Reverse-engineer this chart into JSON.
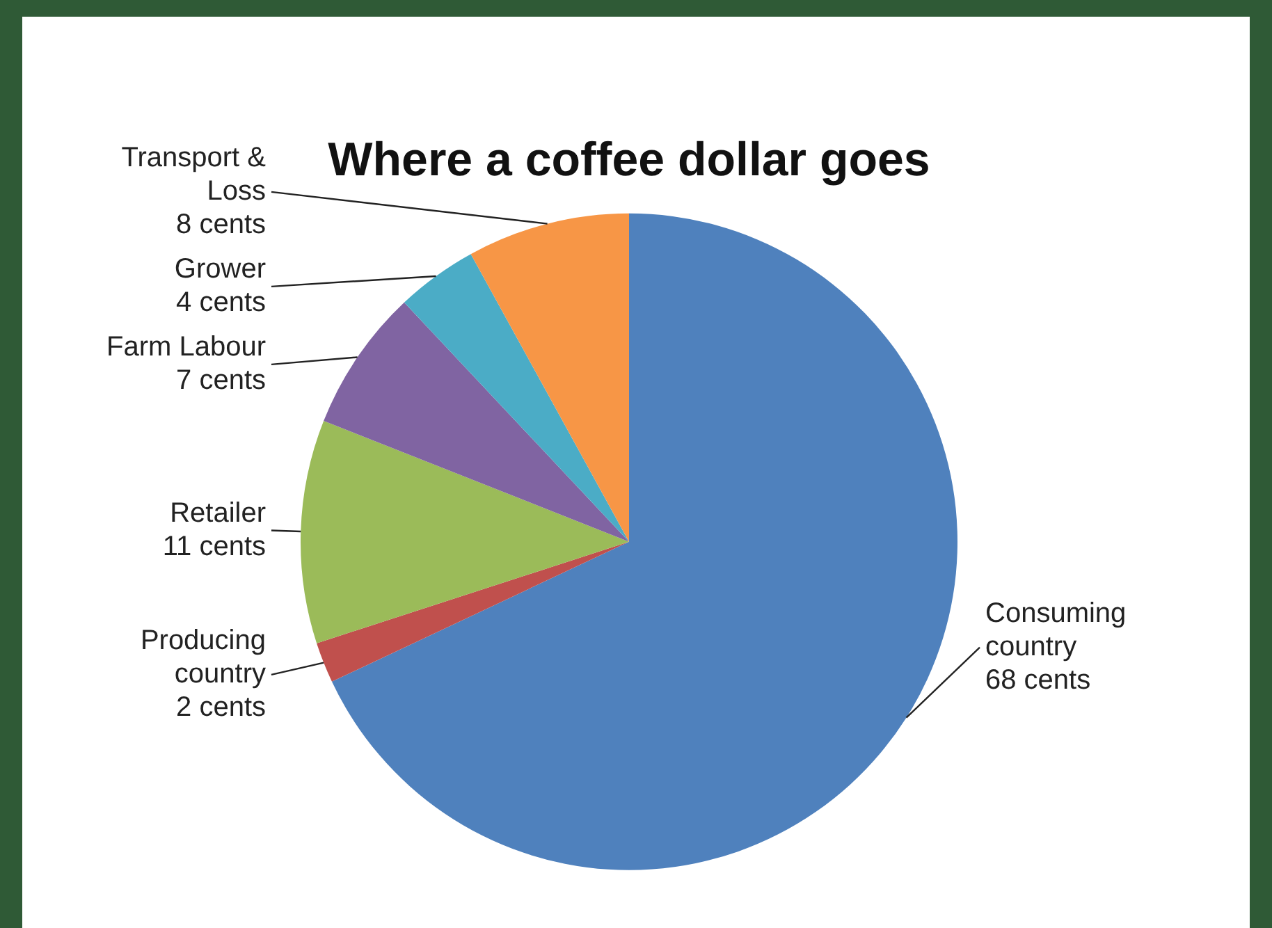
{
  "chart_data": {
    "type": "pie",
    "title": "Where a coffee dollar goes",
    "categories": [
      "Consuming country",
      "Producing country",
      "Retailer",
      "Farm Labour",
      "Grower",
      "Transport & Loss"
    ],
    "values": [
      68,
      2,
      11,
      7,
      4,
      8
    ],
    "colors": [
      "#4f81bd",
      "#c0504d",
      "#9bbb59",
      "#8064a2",
      "#4bacc6",
      "#f79646"
    ],
    "value_labels": [
      "68 cents",
      "2 cents",
      "11 cents",
      "7 cents",
      "4 cents",
      "8 cents"
    ],
    "legend": false
  }
}
